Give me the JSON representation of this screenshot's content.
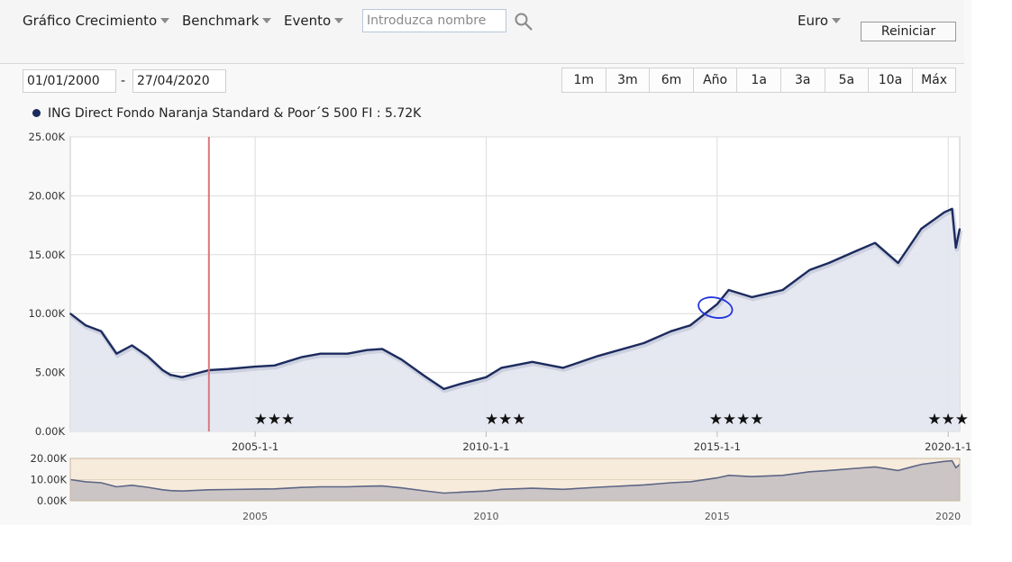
{
  "toolbar": {
    "menus": [
      {
        "label": "Gráfico Crecimiento"
      },
      {
        "label": "Benchmark"
      },
      {
        "label": "Evento"
      }
    ],
    "search_placeholder": "Introduzca nombre",
    "currency": "Euro",
    "reset_label": "Reiniciar"
  },
  "dates": {
    "start": "01/01/2000",
    "separator": "-",
    "end": "27/04/2020"
  },
  "ranges": [
    "1m",
    "3m",
    "6m",
    "Año",
    "1a",
    "3a",
    "5a",
    "10a",
    "Máx"
  ],
  "legend": {
    "label": "ING Direct Fondo Naranja Standard & Poor´S 500 FI : 5.72K"
  },
  "colors": {
    "series": "#1c2b5e",
    "area": "#e3e6ef",
    "marker": "#d9777c",
    "annotation": "#2233dd",
    "navigator_bg": "#f7ebdc"
  },
  "icons": {
    "search": "search-icon",
    "dropdown": "caret-down-icon"
  },
  "chart_data": {
    "type": "area",
    "x_axis_type": "datetime",
    "series": [
      {
        "name": "ING Direct Fondo Naranja Standard & Poor´S 500 FI",
        "x": [
          "2001-01",
          "2001-05",
          "2001-09",
          "2002-01",
          "2002-05",
          "2002-09",
          "2003-01",
          "2003-03",
          "2003-06",
          "2004-01",
          "2004-06",
          "2005-01",
          "2005-06",
          "2006-01",
          "2006-06",
          "2007-01",
          "2007-06",
          "2007-10",
          "2008-03",
          "2008-09",
          "2009-02",
          "2009-06",
          "2010-01",
          "2010-05",
          "2011-01",
          "2011-09",
          "2012-06",
          "2013-06",
          "2014-01",
          "2014-06",
          "2015-01",
          "2015-04",
          "2015-10",
          "2016-06",
          "2017-01",
          "2017-06",
          "2018-01",
          "2018-06",
          "2018-12",
          "2019-06",
          "2019-12",
          "2020-02",
          "2020-03",
          "2020-04"
        ],
        "values": [
          10.0,
          9.0,
          8.5,
          6.6,
          7.3,
          6.4,
          5.2,
          4.8,
          4.6,
          5.2,
          5.3,
          5.5,
          5.6,
          6.3,
          6.6,
          6.6,
          6.9,
          7.0,
          6.1,
          4.7,
          3.6,
          4.0,
          4.6,
          5.4,
          5.9,
          5.4,
          6.4,
          7.5,
          8.5,
          9.0,
          10.8,
          12.0,
          11.4,
          12.0,
          13.7,
          14.3,
          15.3,
          16.0,
          14.3,
          17.2,
          18.6,
          18.9,
          15.6,
          17.2
        ]
      }
    ],
    "x_tick_labels": [
      "2005-1-1",
      "2010-1-1",
      "2015-1-1",
      "2020-1-1"
    ],
    "y_tick_labels": [
      "0.00K",
      "5.00K",
      "10.00K",
      "15.00K",
      "20.00K",
      "25.00K"
    ],
    "ylim": [
      0,
      25
    ],
    "xlim": [
      "2001-01",
      "2020-04"
    ],
    "grid": true,
    "legend_position": "top-left",
    "event_marker": {
      "x": "2004-01"
    },
    "annotation_circle": {
      "x": "2015-01",
      "y": 10.2
    },
    "ratings": [
      {
        "x": "2005-06",
        "stars": "★★★"
      },
      {
        "x": "2010-06",
        "stars": "★★★"
      },
      {
        "x": "2015-06",
        "stars": "★★★★"
      },
      {
        "x": "2020-01",
        "stars": "★★★"
      }
    ],
    "navigator": {
      "y_tick_labels": [
        "0.00K",
        "10.00K",
        "20.00K"
      ],
      "ylim": [
        0,
        20
      ],
      "x_tick_labels": [
        "2005",
        "2010",
        "2015",
        "2020"
      ]
    }
  }
}
